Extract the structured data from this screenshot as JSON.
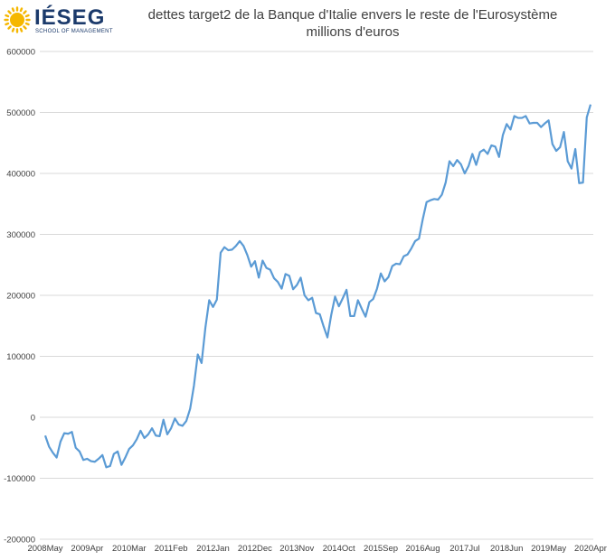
{
  "logo": {
    "name": "IÉSEG",
    "subtitle": "SCHOOL OF MANAGEMENT",
    "icon": "sun-logo-icon",
    "accent": "#f5b700"
  },
  "colors": {
    "line": "#5b9bd5",
    "grid": "#d9d9d9",
    "text": "#404040"
  },
  "chart_data": {
    "type": "line",
    "title": "dettes target2 de la Banque d'Italie envers le reste de l'Eurosystème",
    "subtitle": "millions d'euros",
    "xlabel": "",
    "ylabel": "",
    "ylim": [
      -200000,
      600000
    ],
    "yticks": [
      -200000,
      -100000,
      0,
      100000,
      200000,
      300000,
      400000,
      500000,
      600000
    ],
    "ytick_labels": [
      "-200000",
      "-100000",
      "0",
      "100000",
      "200000",
      "300000",
      "400000",
      "500000",
      "600000"
    ],
    "xtick_labels": [
      "2008May",
      "2009Apr",
      "2010Mar",
      "2011Feb",
      "2012Jan",
      "2012Dec",
      "2013Nov",
      "2014Oct",
      "2015Sep",
      "2016Aug",
      "2017Jul",
      "2018Jun",
      "2019May",
      "2020Apr"
    ],
    "x_start": "2008May",
    "x_end": "2020Apr",
    "grid": true,
    "legend": "none",
    "series": [
      {
        "values": [
          -30000,
          -48000,
          -58000,
          -66000,
          -40000,
          -26000,
          -27000,
          -24000,
          -50000,
          -56000,
          -70000,
          -68000,
          -72000,
          -73000,
          -68000,
          -62000,
          -82000,
          -80000,
          -60000,
          -56000,
          -78000,
          -66000,
          -52000,
          -46000,
          -36000,
          -22000,
          -34000,
          -28000,
          -18000,
          -30000,
          -31000,
          -4000,
          -28000,
          -18000,
          -2000,
          -12000,
          -14000,
          -6000,
          14000,
          52000,
          103000,
          89000,
          147000,
          192000,
          181000,
          193000,
          270000,
          279000,
          274000,
          275000,
          281000,
          289000,
          281000,
          266000,
          247000,
          256000,
          229000,
          257000,
          245000,
          242000,
          228000,
          222000,
          211000,
          235000,
          232000,
          210000,
          217000,
          229000,
          200000,
          192000,
          196000,
          171000,
          169000,
          149000,
          131000,
          168000,
          198000,
          182000,
          195000,
          209000,
          166000,
          166000,
          192000,
          178000,
          165000,
          189000,
          194000,
          211000,
          236000,
          223000,
          230000,
          248000,
          252000,
          251000,
          264000,
          267000,
          277000,
          289000,
          293000,
          325000,
          353000,
          356000,
          358000,
          357000,
          365000,
          385000,
          420000,
          412000,
          422000,
          415000,
          400000,
          412000,
          432000,
          414000,
          435000,
          439000,
          432000,
          446000,
          444000,
          427000,
          463000,
          481000,
          472000,
          494000,
          491000,
          491000,
          494000,
          482000,
          483000,
          483000,
          476000,
          482000,
          487000,
          448000,
          437000,
          443000,
          468000,
          420000,
          408000,
          440000,
          384000,
          385000,
          492000,
          513000
        ]
      }
    ]
  }
}
